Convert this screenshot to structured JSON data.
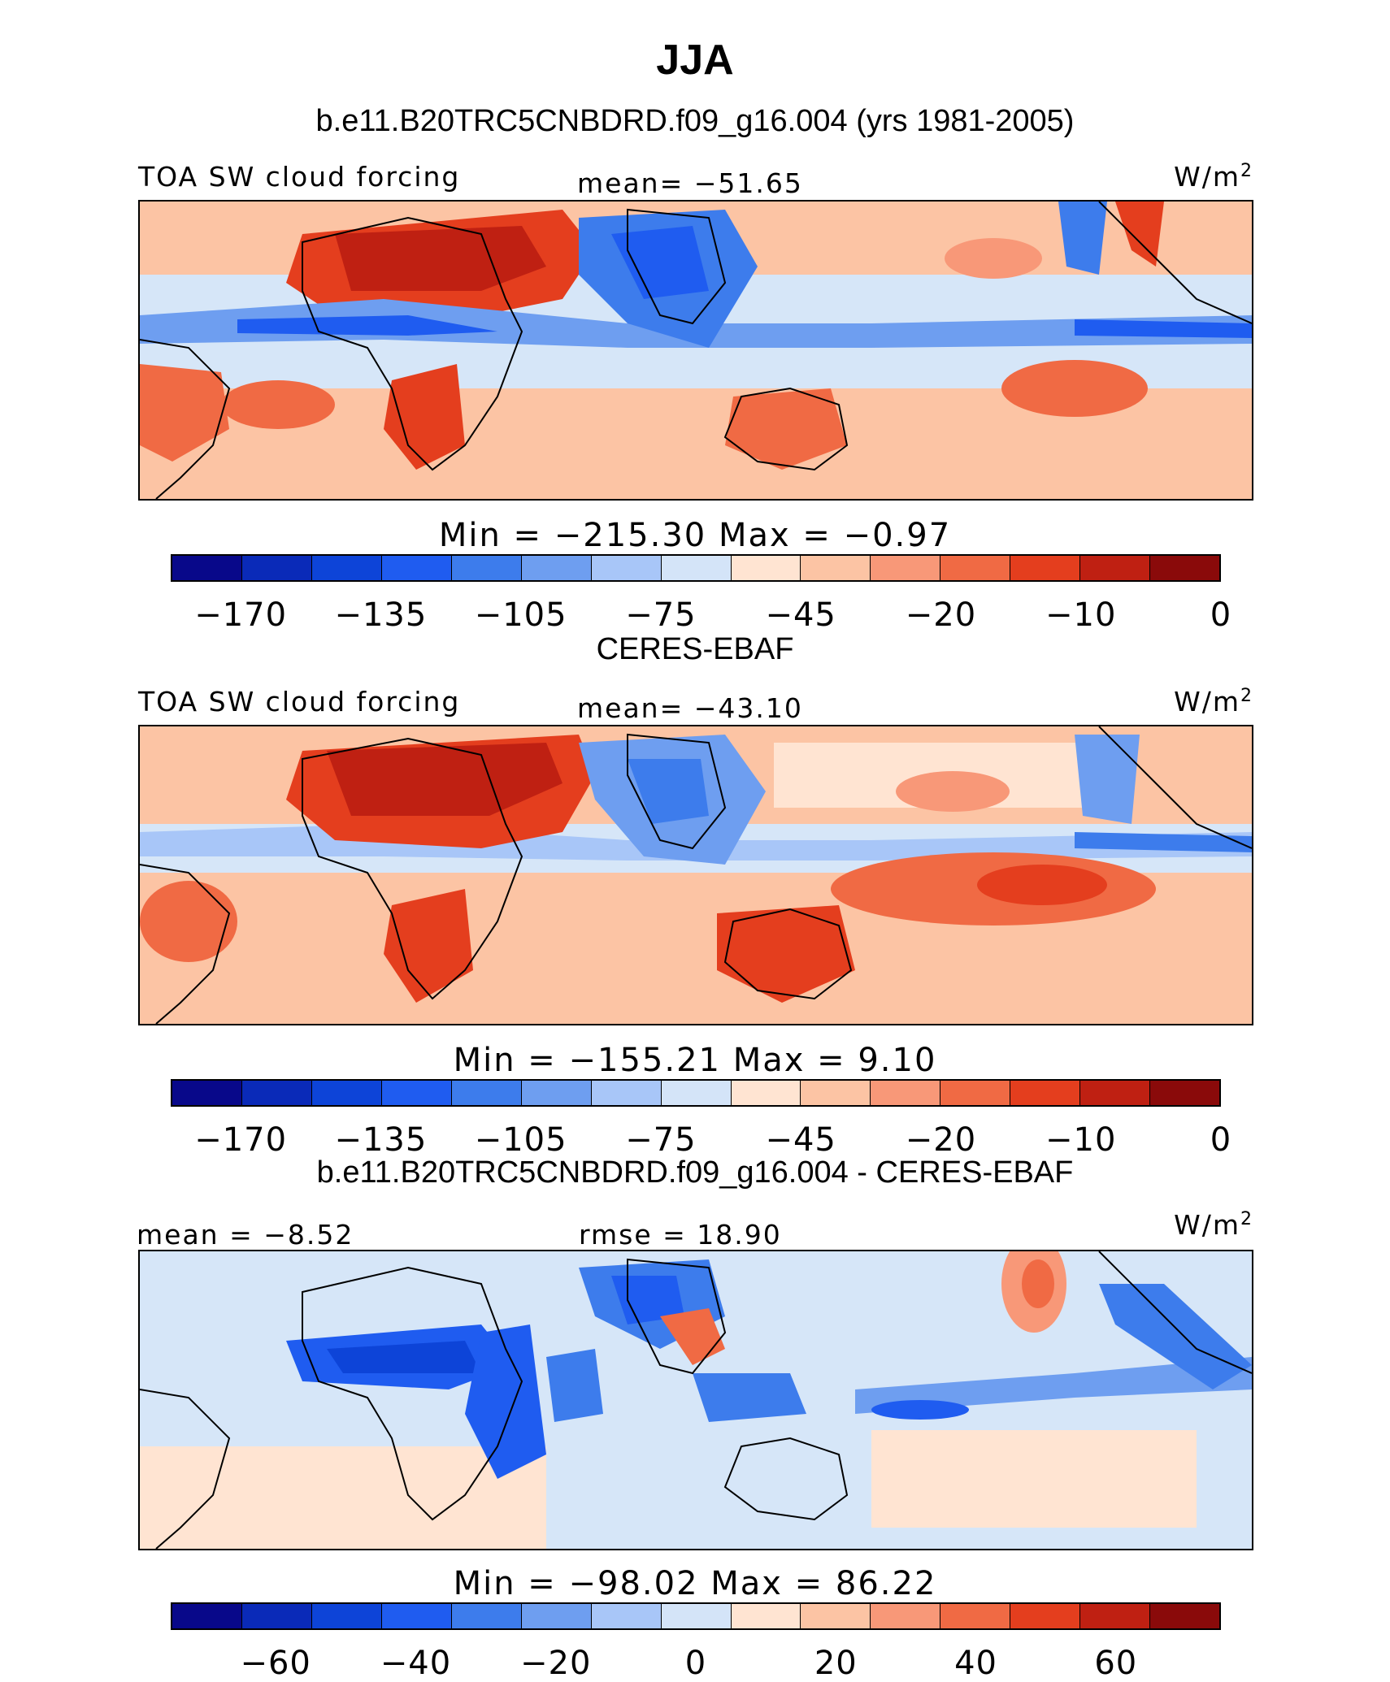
{
  "header": {
    "title": "JJA"
  },
  "colors": {
    "standard_scale": [
      "#08088a",
      "#0a2ab8",
      "#0d44d8",
      "#1f5cf0",
      "#3d7cec",
      "#6e9ef0",
      "#a8c6f8",
      "#d4e4f8",
      "#ffe4d2",
      "#fcc4a4",
      "#f89878",
      "#f06a44",
      "#e43e1e",
      "#bf2012",
      "#8a0a0a"
    ],
    "diff_scale": [
      "#08088a",
      "#0a2ab8",
      "#0d44d8",
      "#1f5cf0",
      "#3d7cec",
      "#6e9ef0",
      "#a8c6f8",
      "#d4e4f8",
      "#ffe4d2",
      "#fcc4a4",
      "#f89878",
      "#f06a44",
      "#e43e1e",
      "#bf2012",
      "#8a0a0a"
    ]
  },
  "panels": [
    {
      "title": "b.e11.B20TRC5CNBDRD.f09_g16.004 (yrs 1981-2005)",
      "left_label": "TOA SW cloud forcing",
      "center_label": "mean= −51.65",
      "units_base": "W/m",
      "units_exp": "2",
      "minmax": "Min  =  −215.30  Max  =    −0.97",
      "ticks": [
        "−170",
        "−135",
        "−105",
        "−75",
        "−45",
        "−20",
        "−10",
        "0"
      ]
    },
    {
      "title": "CERES-EBAF",
      "left_label": "TOA SW cloud forcing",
      "center_label": "mean= −43.10",
      "units_base": "W/m",
      "units_exp": "2",
      "minmax": "Min  =  −155.21  Max  =     9.10",
      "ticks": [
        "−170",
        "−135",
        "−105",
        "−75",
        "−45",
        "−20",
        "−10",
        "0"
      ]
    },
    {
      "title": "b.e11.B20TRC5CNBDRD.f09_g16.004 - CERES-EBAF",
      "left_label": "mean =   −8.52",
      "center_label": "rmse =   18.90",
      "units_base": "W/m",
      "units_exp": "2",
      "minmax": "Min  =  −98.02  Max  =   86.22",
      "ticks": [
        "−60",
        "−40",
        "−20",
        "0",
        "20",
        "40",
        "60"
      ]
    }
  ]
}
